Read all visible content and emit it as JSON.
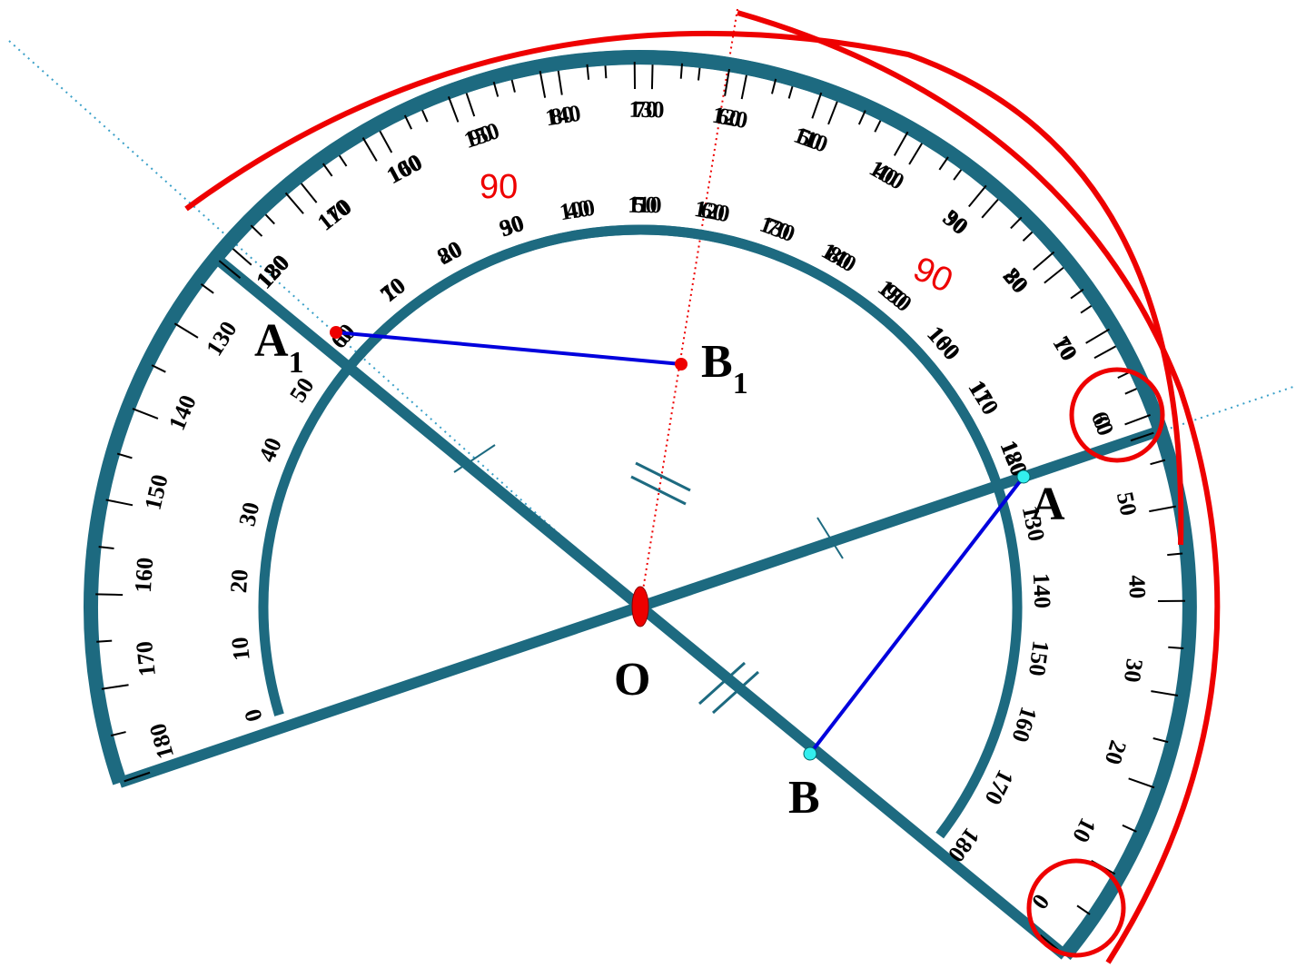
{
  "points": [
    {
      "label": "A",
      "sub": "1"
    },
    {
      "label": "B",
      "sub": "1"
    },
    {
      "label": "A"
    },
    {
      "label": "B"
    },
    {
      "label": "O"
    }
  ],
  "angle_marks": [
    "90",
    "90"
  ],
  "protractors": [
    {
      "outer_scale": [
        0,
        10,
        20,
        30,
        40,
        50,
        60,
        70,
        80,
        90,
        100,
        110,
        120,
        130,
        140,
        150,
        160,
        170,
        180
      ],
      "inner_scale": [
        180,
        170,
        160,
        150,
        140,
        130,
        120,
        110,
        100,
        90,
        80,
        70,
        60,
        50,
        40,
        30,
        20,
        10,
        0
      ]
    },
    {
      "outer_scale": [
        0,
        10,
        20,
        30,
        40,
        50,
        60,
        70,
        80,
        90,
        100,
        110,
        120,
        130,
        140,
        150,
        160,
        170,
        180
      ],
      "inner_scale": [
        180,
        170,
        160,
        150,
        140,
        130,
        120,
        110,
        100,
        90,
        80,
        70,
        60,
        50,
        40,
        30,
        20,
        10,
        0
      ]
    }
  ]
}
